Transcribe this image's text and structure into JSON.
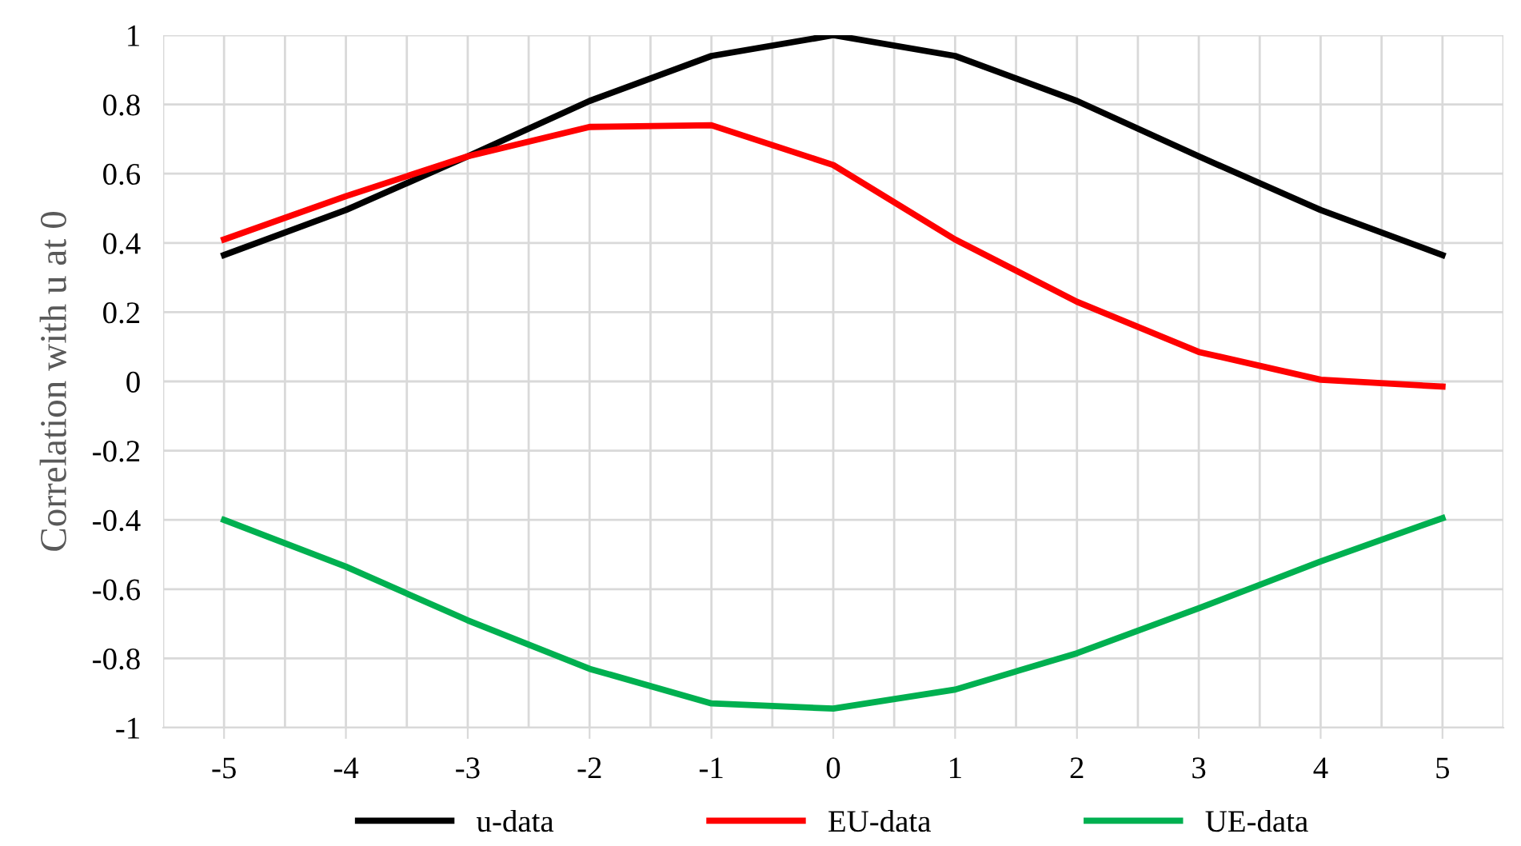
{
  "chart_data": {
    "type": "line",
    "ylabel": "Correlation with u at 0",
    "categories": [
      "-5",
      "-4",
      "-3",
      "-2",
      "-1",
      "0",
      "1",
      "2",
      "3",
      "4",
      "5"
    ],
    "series": [
      {
        "name": "u-data",
        "color": "#000000",
        "values": [
          0.365,
          0.495,
          0.65,
          0.81,
          0.94,
          1.0,
          0.94,
          0.81,
          0.65,
          0.495,
          0.365
        ]
      },
      {
        "name": "EU-data",
        "color": "#ff0000",
        "values": [
          0.41,
          0.535,
          0.65,
          0.735,
          0.74,
          0.625,
          0.41,
          0.23,
          0.085,
          0.005,
          -0.015
        ]
      },
      {
        "name": "UE-data",
        "color": "#00b050",
        "values": [
          -0.4,
          -0.535,
          -0.69,
          -0.83,
          -0.93,
          -0.945,
          -0.89,
          -0.785,
          -0.655,
          -0.52,
          -0.395
        ]
      }
    ],
    "ylim": [
      -1,
      1
    ],
    "yticks": [
      -1,
      -0.8,
      -0.6,
      -0.4,
      -0.2,
      0,
      0.2,
      0.4,
      0.6,
      0.8,
      1
    ],
    "grid": true,
    "legend": "bottom",
    "marker": "none",
    "line_style": "solid"
  }
}
